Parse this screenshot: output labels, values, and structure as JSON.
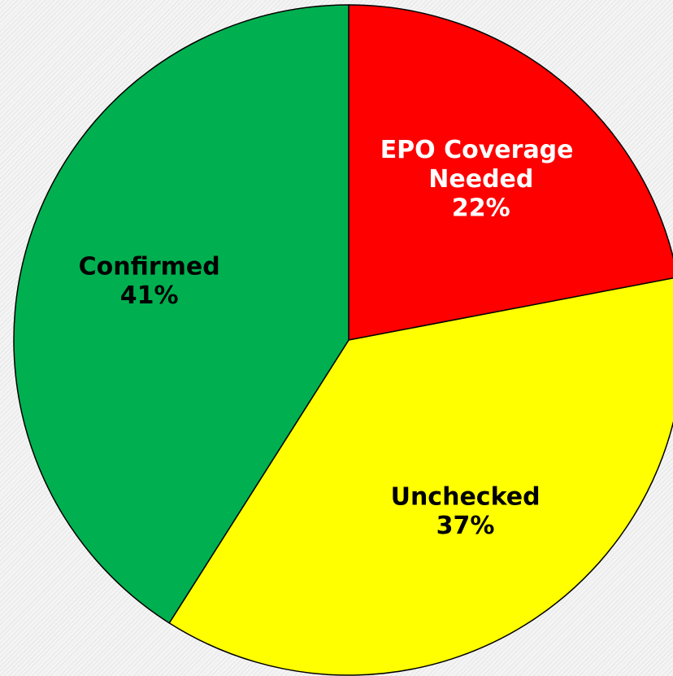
{
  "chart_data": {
    "type": "pie",
    "categories": [
      "EPO Coverage Needed",
      "Unchecked",
      "Confirmed"
    ],
    "values": [
      22,
      37,
      41
    ],
    "value_labels": [
      "22%",
      "37%",
      "41%"
    ],
    "colors": [
      "#ff0000",
      "#ffff00",
      "#00b050"
    ],
    "label_colors": [
      "#ffffff",
      "#000000",
      "#000000"
    ]
  }
}
